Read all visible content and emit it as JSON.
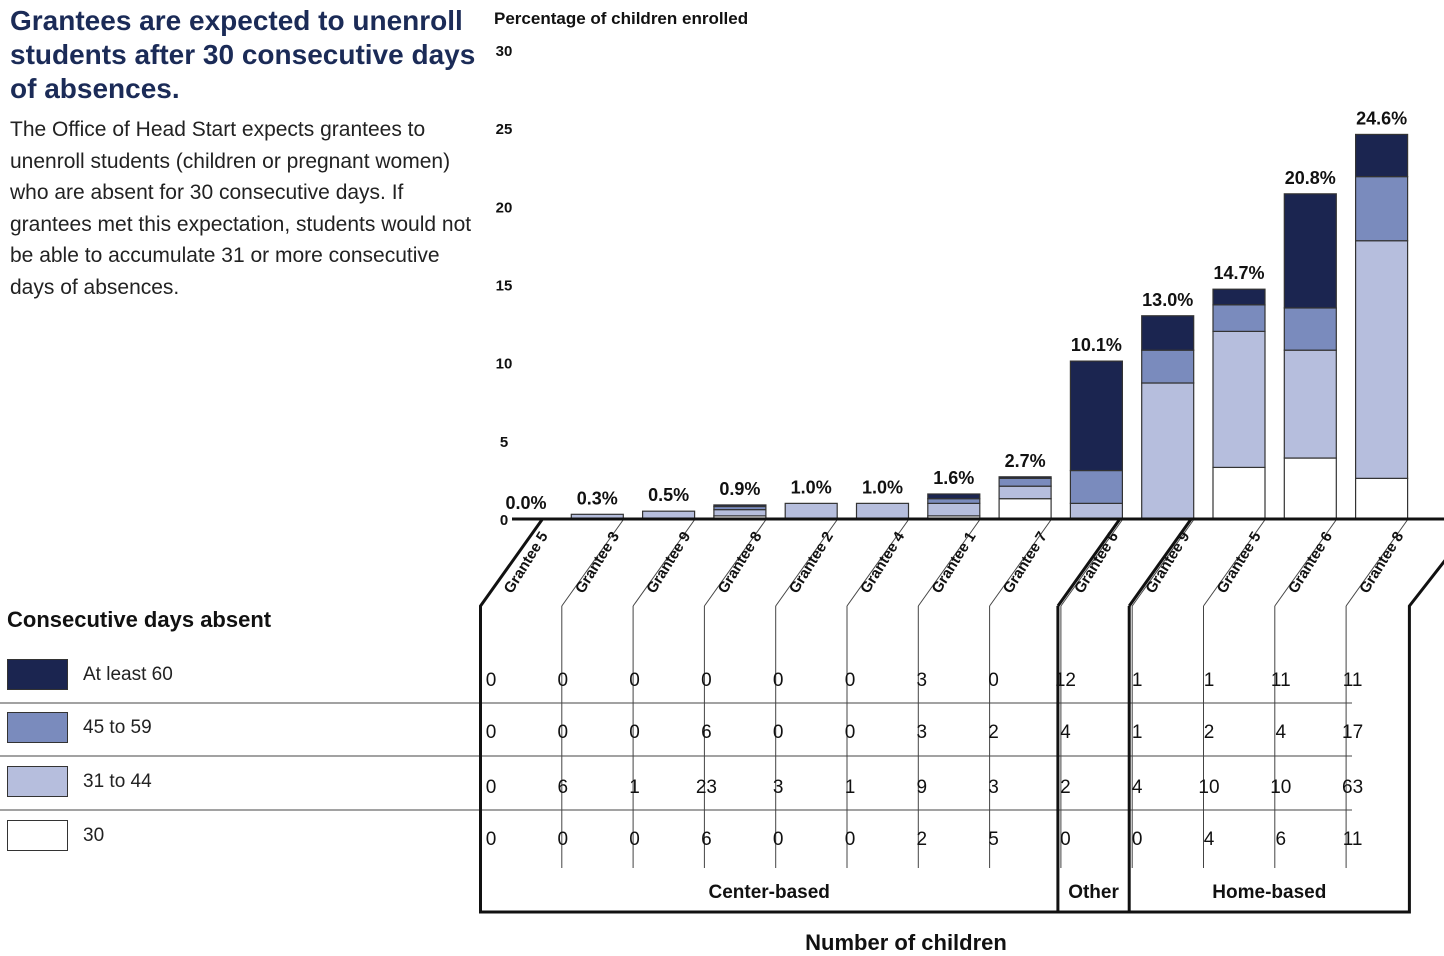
{
  "headline": "Grantees are expected to unenroll students after 30 consecutive days of absences.",
  "intro": "The Office of Head Start expects grantees to unenroll students (children or pregnant women) who are absent for 30 consecutive days. If grantees met this expectation, students would not be able to accumulate 31 or more consecutive days of absences.",
  "legend": {
    "title": "Consecutive days absent",
    "items": [
      {
        "label": "At least 60",
        "color": "#1b2550"
      },
      {
        "label": "45 to 59",
        "color": "#7a8bbd"
      },
      {
        "label": "31 to 44",
        "color": "#b6bedd"
      },
      {
        "label": "30",
        "color": "#ffffff"
      }
    ]
  },
  "chart_data": {
    "type": "bar",
    "stacked": true,
    "ylabel": "Percentage of children enrolled",
    "xlabel": "Number of children",
    "ylim": [
      0,
      30
    ],
    "yticks": [
      0,
      5,
      10,
      15,
      20,
      25,
      30
    ],
    "categories": [
      "Grantee 5",
      "Grantee 3",
      "Grantee 9",
      "Grantee 8",
      "Grantee 2",
      "Grantee 4",
      "Grantee 1",
      "Grantee 7",
      "Grantee 6",
      "Grantee 9",
      "Grantee 5",
      "Grantee 6",
      "Grantee 8"
    ],
    "groups": [
      {
        "name": "Center-based",
        "count": 8
      },
      {
        "name": "Other",
        "count": 1
      },
      {
        "name": "Home-based",
        "count": 4
      }
    ],
    "totals": [
      "0.0%",
      "0.3%",
      "0.5%",
      "0.9%",
      "1.0%",
      "1.0%",
      "1.6%",
      "2.7%",
      "10.1%",
      "13.0%",
      "14.7%",
      "20.8%",
      "24.6%"
    ],
    "total_values": [
      0.0,
      0.3,
      0.5,
      0.9,
      1.0,
      1.0,
      1.6,
      2.7,
      10.1,
      13.0,
      14.7,
      20.8,
      24.6
    ],
    "series": [
      {
        "name": "30",
        "color": "#ffffff",
        "values": [
          0,
          0,
          0,
          0.2,
          0,
          0,
          0.2,
          1.3,
          0,
          0,
          3.3,
          3.9,
          2.6
        ]
      },
      {
        "name": "31 to 44",
        "color": "#b6bedd",
        "values": [
          0,
          0.3,
          0.5,
          0.4,
          1.0,
          1.0,
          0.8,
          0.8,
          1.0,
          8.7,
          8.7,
          6.9,
          15.2
        ]
      },
      {
        "name": "45 to 59",
        "color": "#7a8bbd",
        "values": [
          0,
          0,
          0,
          0.2,
          0,
          0,
          0.3,
          0.5,
          2.1,
          2.1,
          1.7,
          2.7,
          4.1
        ]
      },
      {
        "name": "At least 60",
        "color": "#1b2550",
        "values": [
          0,
          0,
          0,
          0.1,
          0,
          0,
          0.3,
          0.1,
          7.0,
          2.2,
          1.0,
          7.3,
          2.7
        ]
      }
    ],
    "table": {
      "row_labels": [
        "At least 60",
        "45 to 59",
        "31 to 44",
        "30"
      ],
      "rows": [
        [
          "0",
          "0",
          "0",
          "0",
          "0",
          "0",
          "3",
          "0",
          "12",
          "1",
          "1",
          "11",
          "11"
        ],
        [
          "0",
          "0",
          "0",
          "6",
          "0",
          "0",
          "3",
          "2",
          "4",
          "1",
          "2",
          "4",
          "17"
        ],
        [
          "0",
          "6",
          "1",
          "23",
          "3",
          "1",
          "9",
          "3",
          "2",
          "4",
          "10",
          "10",
          "63"
        ],
        [
          "0",
          "0",
          "0",
          "6",
          "0",
          "0",
          "2",
          "5",
          "0",
          "0",
          "4",
          "6",
          "11"
        ]
      ]
    },
    "grid": false
  }
}
